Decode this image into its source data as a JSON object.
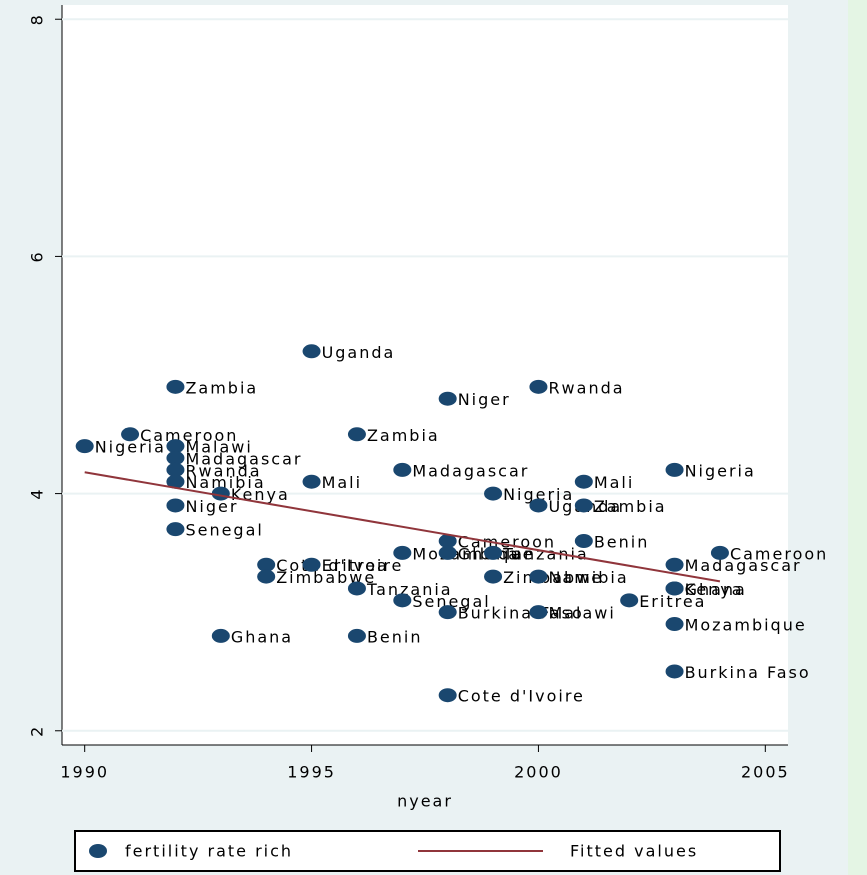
{
  "chart_data": {
    "type": "scatter",
    "x_label": "nyear",
    "xlim": [
      1989.5,
      2005.5
    ],
    "xticks": [
      1990,
      1995,
      2000,
      2005
    ],
    "ylim": [
      1.88,
      8.12
    ],
    "yticks": [
      2,
      4,
      6,
      8
    ],
    "grid": true,
    "series": [
      {
        "name": "fertility rate rich",
        "type": "scatter",
        "color": "#1a476f",
        "x": [
          1990,
          1991,
          1992,
          1992,
          1992,
          1992,
          1992,
          1992,
          1992,
          1993,
          1993,
          1994,
          1994,
          1995,
          1995,
          1995,
          1996,
          1996,
          1996,
          1997,
          1997,
          1997,
          1998,
          1998,
          1998,
          1998,
          1998,
          1999,
          1999,
          1999,
          2000,
          2000,
          2000,
          2000,
          2001,
          2001,
          2001,
          2002,
          2003,
          2003,
          2003,
          2003,
          2003,
          2003,
          2004
        ],
        "values": [
          4.4,
          4.5,
          4.9,
          4.4,
          4.3,
          4.2,
          4.1,
          3.9,
          3.7,
          4.0,
          2.8,
          3.4,
          3.3,
          5.2,
          4.1,
          3.4,
          4.5,
          3.2,
          2.8,
          4.2,
          3.5,
          3.1,
          4.8,
          3.6,
          3.5,
          3.0,
          2.3,
          4.0,
          3.5,
          3.3,
          4.9,
          3.9,
          3.3,
          3.0,
          4.1,
          3.9,
          3.6,
          3.1,
          4.2,
          3.4,
          3.2,
          3.2,
          2.9,
          2.5,
          3.5
        ],
        "point_labels": [
          "Nigeria",
          "Cameroon",
          "Zambia",
          "Malawi",
          "Madagascar",
          "Rwanda",
          "Namibia",
          "Niger",
          "Senegal",
          "Kenya",
          "Ghana",
          "Cote d'Ivoire",
          "Zimbabwe",
          "Uganda",
          "Mali",
          "Eritrea",
          "Zambia",
          "Tanzania",
          "Benin",
          "Madagascar",
          "Mozambique",
          "Senegal",
          "Niger",
          "Cameroon",
          "Ghana",
          "Burkina Faso",
          "Cote d'Ivoire",
          "Nigeria",
          "Tanzania",
          "Zimbabwe",
          "Rwanda",
          "Uganda",
          "Namibia",
          "Malawi",
          "Mali",
          "Zambia",
          "Benin",
          "Eritrea",
          "Nigeria",
          "Madagascar",
          "Kenya",
          "Ghana",
          "Mozambique",
          "Burkina Faso",
          "Cameroon"
        ]
      },
      {
        "name": "Fitted values",
        "type": "line",
        "color": "#90353b",
        "x": [
          1990,
          2004
        ],
        "values": [
          4.18,
          3.26
        ]
      }
    ]
  }
}
